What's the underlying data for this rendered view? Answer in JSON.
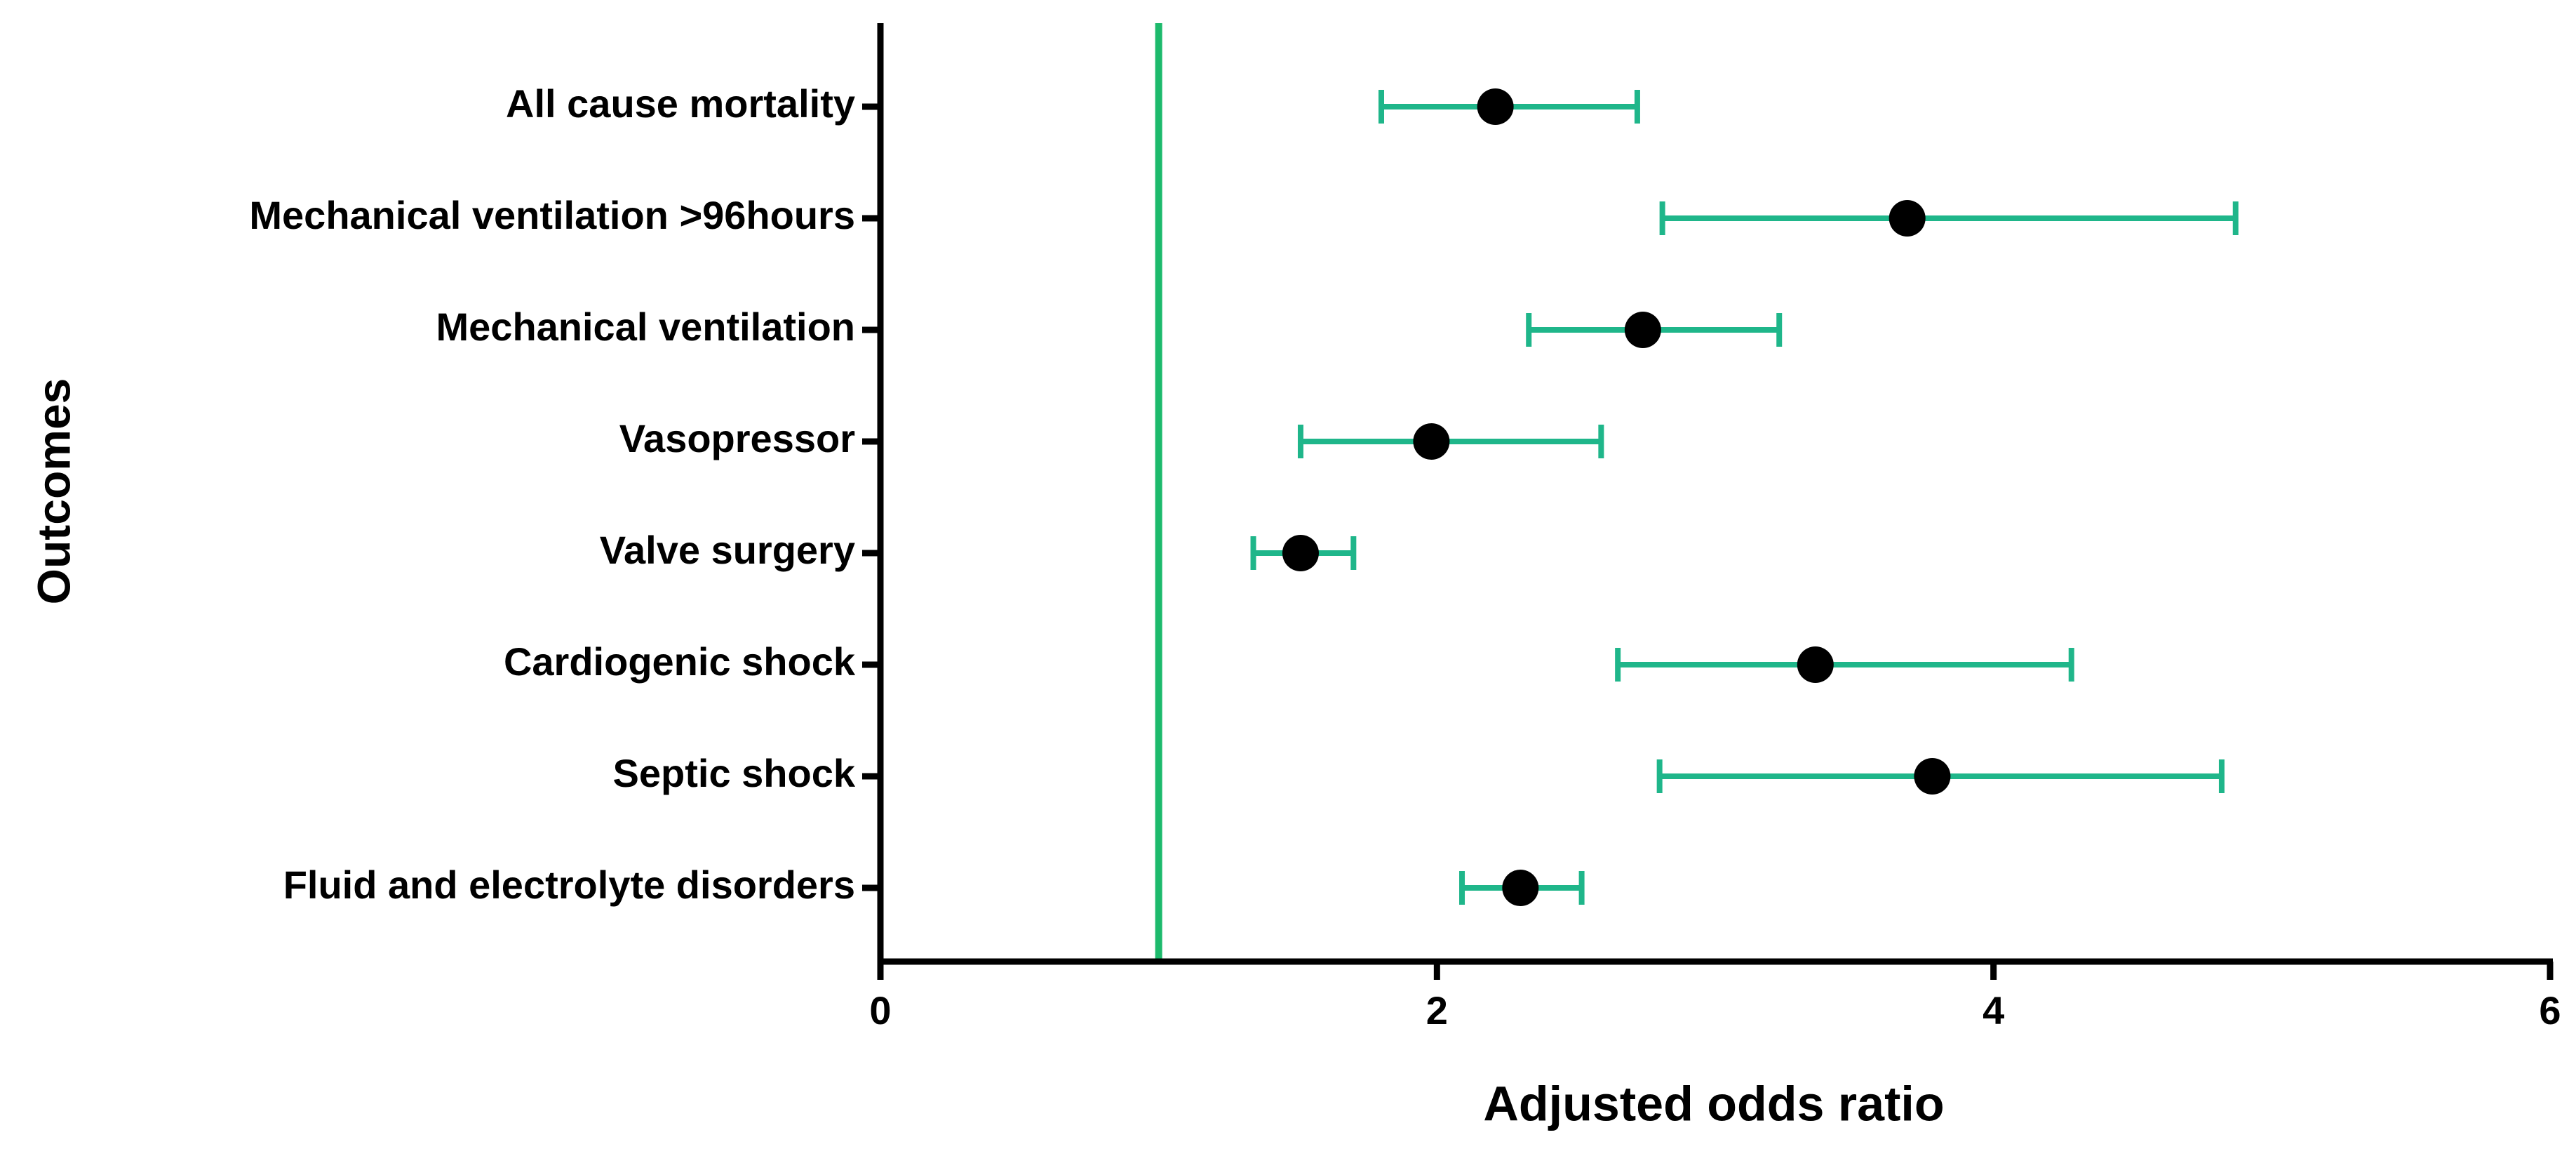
{
  "chart_data": {
    "type": "forest",
    "x_label": "Adjusted odds ratio",
    "y_label": "Outcomes",
    "categories": [
      "All cause mortality",
      "Mechanical ventilation >96hours",
      "Mechanical ventilation",
      "Vasopressor",
      "Valve surgery",
      "Cardiogenic shock",
      "Septic shock",
      "Fluid and electrolyte disorders"
    ],
    "values": [
      2.21,
      3.69,
      2.74,
      1.98,
      1.51,
      3.36,
      3.78,
      2.3
    ],
    "lower": [
      1.8,
      2.81,
      2.33,
      1.51,
      1.34,
      2.65,
      2.8,
      2.09
    ],
    "upper": [
      2.72,
      4.87,
      3.23,
      2.59,
      1.7,
      4.28,
      4.82,
      2.52
    ],
    "point_color": "#000000",
    "ci_color": "#1fb68a",
    "reference_line": 1,
    "reference_color": "#1dba6c",
    "xlim": [
      0,
      6
    ],
    "xticks": [
      0,
      2,
      4,
      6
    ]
  }
}
